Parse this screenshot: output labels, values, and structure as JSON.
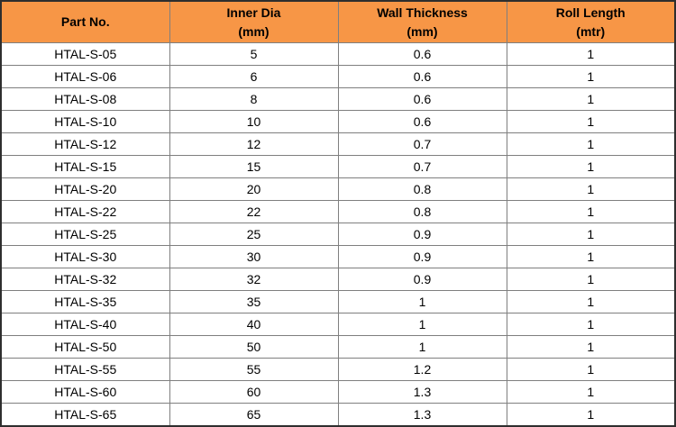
{
  "table": {
    "header_bg": "#F79646",
    "headers": [
      {
        "line1": "Part No.",
        "line2": ""
      },
      {
        "line1": "Inner Dia",
        "line2": "(mm)"
      },
      {
        "line1": "Wall Thickness",
        "line2": "(mm)"
      },
      {
        "line1": "Roll Length",
        "line2": "(mtr)"
      }
    ],
    "rows": [
      {
        "part_no": "HTAL-S-05",
        "inner_dia": "5",
        "wall_thickness": "0.6",
        "roll_length": "1"
      },
      {
        "part_no": "HTAL-S-06",
        "inner_dia": "6",
        "wall_thickness": "0.6",
        "roll_length": "1"
      },
      {
        "part_no": "HTAL-S-08",
        "inner_dia": "8",
        "wall_thickness": "0.6",
        "roll_length": "1"
      },
      {
        "part_no": "HTAL-S-10",
        "inner_dia": "10",
        "wall_thickness": "0.6",
        "roll_length": "1"
      },
      {
        "part_no": "HTAL-S-12",
        "inner_dia": "12",
        "wall_thickness": "0.7",
        "roll_length": "1"
      },
      {
        "part_no": "HTAL-S-15",
        "inner_dia": "15",
        "wall_thickness": "0.7",
        "roll_length": "1"
      },
      {
        "part_no": "HTAL-S-20",
        "inner_dia": "20",
        "wall_thickness": "0.8",
        "roll_length": "1"
      },
      {
        "part_no": "HTAL-S-22",
        "inner_dia": "22",
        "wall_thickness": "0.8",
        "roll_length": "1"
      },
      {
        "part_no": "HTAL-S-25",
        "inner_dia": "25",
        "wall_thickness": "0.9",
        "roll_length": "1"
      },
      {
        "part_no": "HTAL-S-30",
        "inner_dia": "30",
        "wall_thickness": "0.9",
        "roll_length": "1"
      },
      {
        "part_no": "HTAL-S-32",
        "inner_dia": "32",
        "wall_thickness": "0.9",
        "roll_length": "1"
      },
      {
        "part_no": "HTAL-S-35",
        "inner_dia": "35",
        "wall_thickness": "1",
        "roll_length": "1"
      },
      {
        "part_no": "HTAL-S-40",
        "inner_dia": "40",
        "wall_thickness": "1",
        "roll_length": "1"
      },
      {
        "part_no": "HTAL-S-50",
        "inner_dia": "50",
        "wall_thickness": "1",
        "roll_length": "1"
      },
      {
        "part_no": "HTAL-S-55",
        "inner_dia": "55",
        "wall_thickness": "1.2",
        "roll_length": "1"
      },
      {
        "part_no": "HTAL-S-60",
        "inner_dia": "60",
        "wall_thickness": "1.3",
        "roll_length": "1"
      },
      {
        "part_no": "HTAL-S-65",
        "inner_dia": "65",
        "wall_thickness": "1.3",
        "roll_length": "1"
      }
    ]
  }
}
